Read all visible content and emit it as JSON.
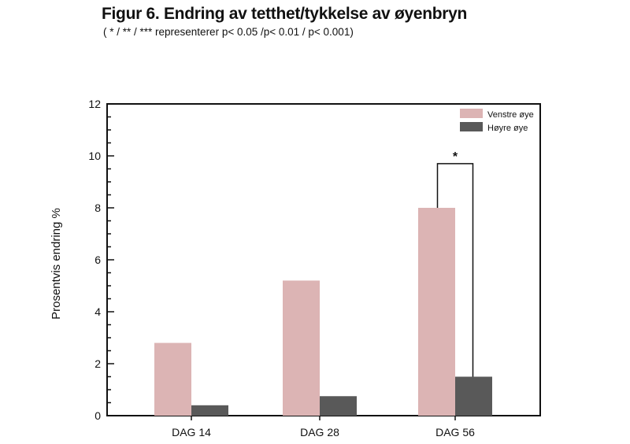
{
  "title": "Figur 6. Endring av tetthet/tykkelse av øyenbryn",
  "subtitle": "( * / ** / *** representerer p< 0.05 /p< 0.01 / p< 0.001)",
  "colors": {
    "venstre": "#dcb4b4",
    "hoyre": "#595959",
    "axis": "#111111"
  },
  "chart_data": {
    "type": "bar",
    "title": "Figur 6. Endring av tetthet/tykkelse av øyenbryn",
    "subtitle": "( * / ** / *** representerer p< 0.05 /p< 0.01 / p< 0.001)",
    "xlabel": "",
    "ylabel": "Prosentvis endring %",
    "ylim": [
      0,
      12
    ],
    "yticks": [
      0,
      2,
      4,
      6,
      8,
      10,
      12
    ],
    "ytick_labels": [
      "0",
      "2",
      "4",
      "6",
      "8",
      "10",
      "12"
    ],
    "categories": [
      "DAG 14",
      "DAG 28",
      "DAG 56"
    ],
    "series": [
      {
        "name": "Venstre øye",
        "values": [
          2.8,
          5.2,
          8.0
        ]
      },
      {
        "name": "Høyre øye",
        "values": [
          0.4,
          0.75,
          1.5
        ]
      }
    ],
    "legend": {
      "position": "top-right"
    },
    "grid": false,
    "annotations": [
      {
        "category": "DAG 56",
        "text": "*",
        "between": [
          "Venstre øye",
          "Høyre øye"
        ],
        "bracket_top": 9.7
      }
    ]
  }
}
